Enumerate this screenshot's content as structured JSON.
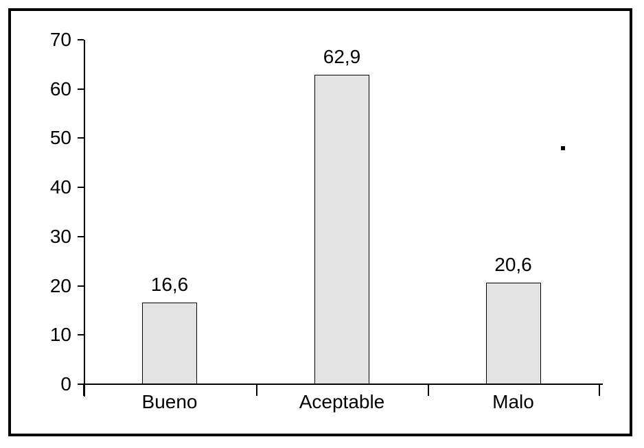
{
  "canvas": {
    "background": "#ffffff",
    "frame_border_color": "#000000",
    "axis_color": "#000000",
    "text_color": "#000000"
  },
  "chart_data": {
    "type": "bar",
    "title": "",
    "xlabel": "",
    "ylabel": "",
    "categories": [
      "Bueno",
      "Aceptable",
      "Malo"
    ],
    "values": [
      16.6,
      62.9,
      20.6
    ],
    "value_labels": [
      "16,6",
      "62,9",
      "20,6"
    ],
    "ylim": [
      0,
      70
    ],
    "yticks": [
      0,
      10,
      20,
      30,
      40,
      50,
      60,
      70
    ],
    "ytick_labels": [
      "0",
      "10",
      "20",
      "30",
      "40",
      "50",
      "60",
      "70"
    ],
    "grid": false,
    "legend_position": "none",
    "bar_fill_color": "#e3e3e3",
    "bar_border_color": "#000000"
  },
  "decorations": {
    "stray_square_mark_color": "#000000"
  }
}
